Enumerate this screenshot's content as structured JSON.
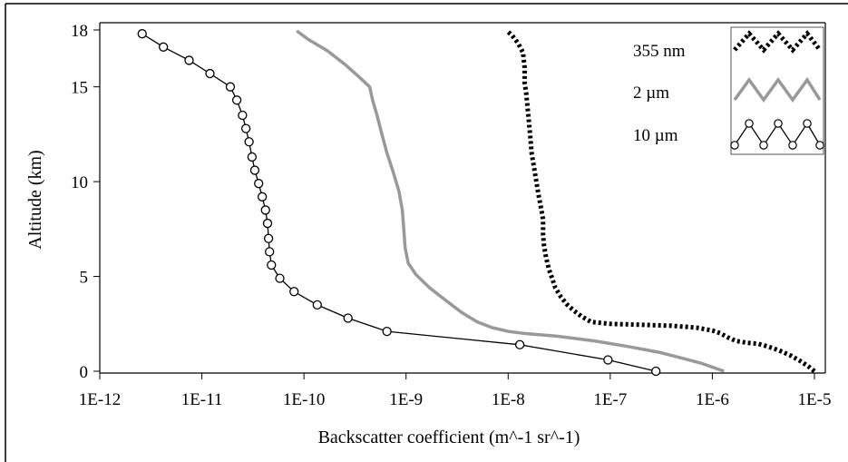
{
  "chart_data": {
    "type": "line",
    "title": "",
    "xlabel": "Backscatter coefficient (m^-1 sr^-1)",
    "ylabel": "Altitude (km)",
    "xscale": "log",
    "xlim": [
      1e-12,
      1e-05
    ],
    "ylim": [
      0,
      18
    ],
    "x_tick_labels": [
      "1E-12",
      "1E-11",
      "1E-10",
      "1E-9",
      "1E-8",
      "1E-7",
      "1E-6",
      "1E-5"
    ],
    "x_tick_values": [
      1e-12,
      1e-11,
      1e-10,
      1e-09,
      1e-08,
      1e-07,
      1e-06,
      1e-05
    ],
    "y_tick_labels": [
      "0",
      "5",
      "10",
      "15",
      "18"
    ],
    "y_tick_values": [
      0,
      5,
      10,
      15,
      18
    ],
    "grid": false,
    "legend_position": "top-right",
    "series": [
      {
        "name": "355 nm",
        "color": "#000000",
        "style": "dotted",
        "points": [
          [
            1e-05,
            0.0
          ],
          [
            9e-06,
            0.2
          ],
          [
            7.5e-06,
            0.5
          ],
          [
            6e-06,
            0.8
          ],
          [
            4.5e-06,
            1.1
          ],
          [
            3.5e-06,
            1.3
          ],
          [
            2.8e-06,
            1.45
          ],
          [
            2.2e-06,
            1.5
          ],
          [
            1.7e-06,
            1.6
          ],
          [
            1.4e-06,
            1.8
          ],
          [
            1.2e-06,
            2.0
          ],
          [
            1e-06,
            2.15
          ],
          [
            7e-07,
            2.3
          ],
          [
            4e-07,
            2.4
          ],
          [
            2e-07,
            2.45
          ],
          [
            1e-07,
            2.5
          ],
          [
            6.5e-08,
            2.6
          ],
          [
            5.2e-08,
            2.9
          ],
          [
            4.4e-08,
            3.2
          ],
          [
            3.8e-08,
            3.5
          ],
          [
            3.3e-08,
            3.9
          ],
          [
            2.9e-08,
            4.4
          ],
          [
            2.7e-08,
            4.9
          ],
          [
            2.5e-08,
            5.4
          ],
          [
            2.35e-08,
            6.0
          ],
          [
            2.25e-08,
            6.6
          ],
          [
            2.2e-08,
            7.2
          ],
          [
            2.2e-08,
            8.0
          ],
          [
            2.1e-08,
            8.6
          ],
          [
            2e-08,
            9.2
          ],
          [
            1.9e-08,
            9.9
          ],
          [
            1.8e-08,
            10.7
          ],
          [
            1.7e-08,
            11.5
          ],
          [
            1.65e-08,
            12.3
          ],
          [
            1.6e-08,
            13.1
          ],
          [
            1.55e-08,
            13.9
          ],
          [
            1.5e-08,
            14.7
          ],
          [
            1.45e-08,
            15.2
          ],
          [
            1.45e-08,
            16.0
          ],
          [
            1.4e-08,
            16.8
          ],
          [
            1.25e-08,
            17.3
          ],
          [
            1.1e-08,
            17.7
          ],
          [
            1e-08,
            17.9
          ]
        ]
      },
      {
        "name": "2 µm",
        "color": "#999999",
        "style": "solid",
        "points": [
          [
            1.3e-06,
            0.0
          ],
          [
            8e-07,
            0.4
          ],
          [
            5e-07,
            0.7
          ],
          [
            3e-07,
            1.0
          ],
          [
            1.5e-07,
            1.3
          ],
          [
            7e-08,
            1.6
          ],
          [
            3e-08,
            1.85
          ],
          [
            1.4e-08,
            2.0
          ],
          [
            1e-08,
            2.1
          ],
          [
            7e-09,
            2.3
          ],
          [
            5e-09,
            2.6
          ],
          [
            3.5e-09,
            3.1
          ],
          [
            2.5e-09,
            3.7
          ],
          [
            1.7e-09,
            4.4
          ],
          [
            1.25e-09,
            5.1
          ],
          [
            1.05e-09,
            5.7
          ],
          [
            9.8e-10,
            6.5
          ],
          [
            9.5e-10,
            7.5
          ],
          [
            9.2e-10,
            8.5
          ],
          [
            8.5e-10,
            9.5
          ],
          [
            7.5e-10,
            10.5
          ],
          [
            6.5e-10,
            11.5
          ],
          [
            5.8e-10,
            12.5
          ],
          [
            5.2e-10,
            13.5
          ],
          [
            4.7e-10,
            14.3
          ],
          [
            4.4e-10,
            15.0
          ],
          [
            3.5e-10,
            15.5
          ],
          [
            2.5e-10,
            16.2
          ],
          [
            1.7e-10,
            16.9
          ],
          [
            1.1e-10,
            17.5
          ],
          [
            8.5e-11,
            17.95
          ]
        ]
      },
      {
        "name": "10 µm",
        "color": "#000000",
        "style": "solid with circle markers",
        "points": [
          [
            2.8e-07,
            0.0
          ],
          [
            9.5e-08,
            0.6
          ],
          [
            1.3e-08,
            1.4
          ],
          [
            6.5e-10,
            2.1
          ],
          [
            2.7e-10,
            2.8
          ],
          [
            1.35e-10,
            3.5
          ],
          [
            8e-11,
            4.2
          ],
          [
            5.8e-11,
            4.9
          ],
          [
            4.8e-11,
            5.6
          ],
          [
            4.6e-11,
            6.3
          ],
          [
            4.5e-11,
            7.0
          ],
          [
            4.4e-11,
            7.8
          ],
          [
            4.2e-11,
            8.5
          ],
          [
            3.9e-11,
            9.2
          ],
          [
            3.6e-11,
            9.9
          ],
          [
            3.3e-11,
            10.6
          ],
          [
            3.1e-11,
            11.3
          ],
          [
            2.9e-11,
            12.1
          ],
          [
            2.7e-11,
            12.8
          ],
          [
            2.5e-11,
            13.5
          ],
          [
            2.2e-11,
            14.3
          ],
          [
            1.9e-11,
            15.0
          ],
          [
            1.2e-11,
            15.7
          ],
          [
            7.5e-12,
            16.4
          ],
          [
            4.2e-12,
            17.1
          ],
          [
            2.6e-12,
            17.8
          ]
        ]
      }
    ]
  }
}
